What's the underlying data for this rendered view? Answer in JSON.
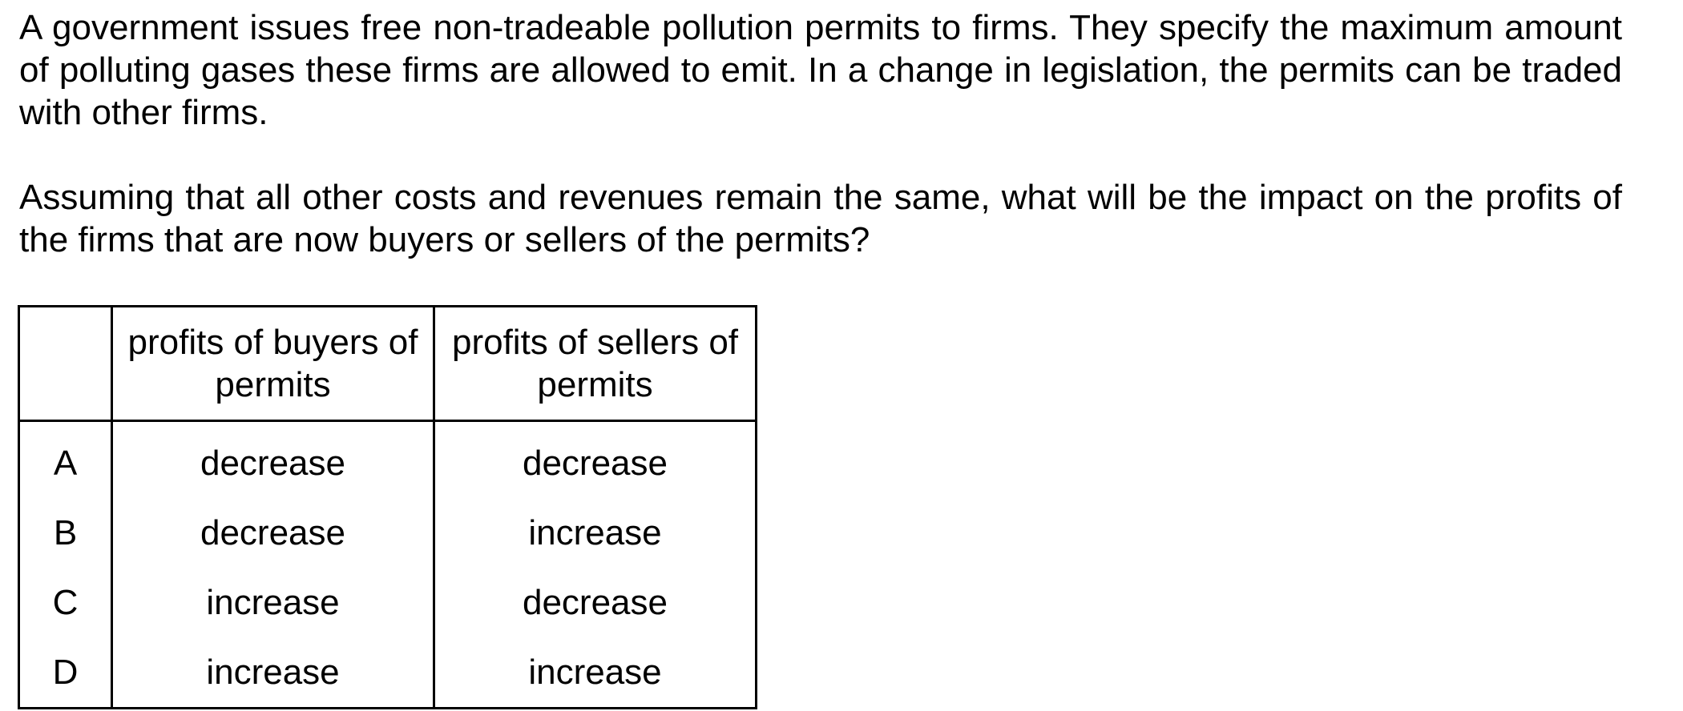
{
  "question": {
    "paragraph_1": "A government issues free non-tradeable pollution permits to firms. They specify the maximum amount of polluting gases these firms are allowed to emit. In a change in legislation, the permits can be traded with other firms.",
    "paragraph_2": "Assuming that all other costs and revenues remain the same, what will be the impact on the profits of the firms that are now buyers or sellers of the permits?"
  },
  "table": {
    "headers": [
      "",
      "profits of buyers of permits",
      "profits of sellers of permits"
    ],
    "rows": [
      {
        "letter": "A",
        "buyers": "decrease",
        "sellers": "decrease"
      },
      {
        "letter": "B",
        "buyers": "decrease",
        "sellers": "increase"
      },
      {
        "letter": "C",
        "buyers": "increase",
        "sellers": "decrease"
      },
      {
        "letter": "D",
        "buyers": "increase",
        "sellers": "increase"
      }
    ]
  }
}
